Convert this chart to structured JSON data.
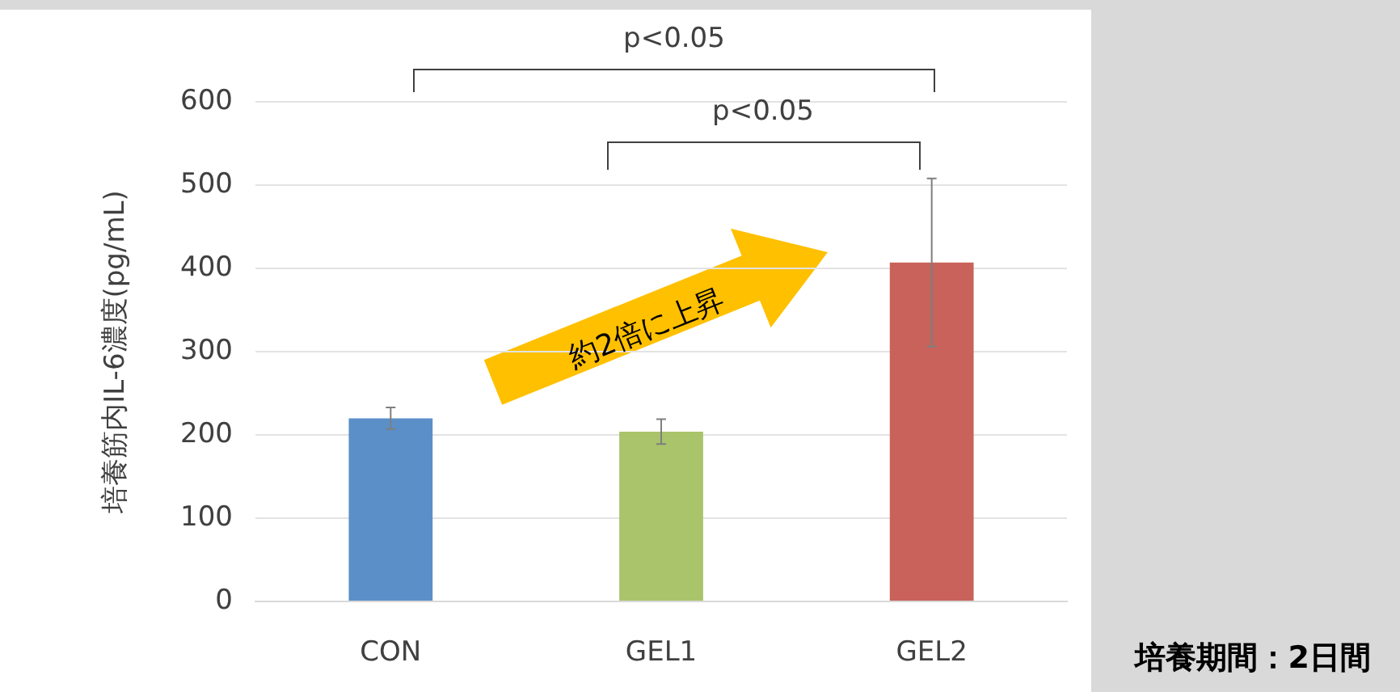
{
  "chart_data": {
    "type": "bar",
    "ylabel": "培養筋内IL-6濃度(pg/mL)",
    "categories": [
      "CON",
      "GEL1",
      "GEL2"
    ],
    "values": [
      220,
      204,
      407
    ],
    "colors": [
      "#5b8fc7",
      "#a9c46a",
      "#c8625a"
    ],
    "errors": [
      13,
      15,
      101
    ],
    "ylim": [
      0,
      600
    ],
    "yticks": [
      0,
      100,
      200,
      300,
      400,
      500,
      600
    ],
    "grid": "y",
    "legend": false,
    "annotations": [
      "p<0.05",
      "p<0.05",
      "約2倍に上昇",
      "培養期間：2日間"
    ]
  }
}
